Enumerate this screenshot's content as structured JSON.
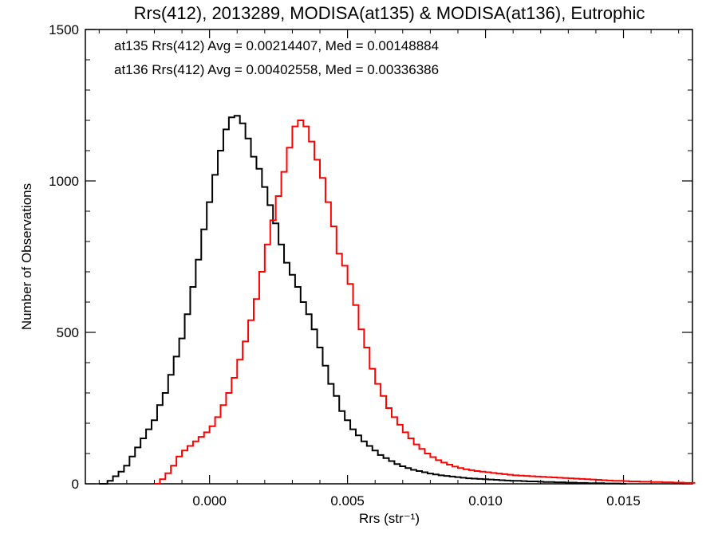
{
  "chart_data": {
    "type": "histogram",
    "title": "Rrs(412), 2013289, MODISA(at135) & MODISA(at136), Eutrophic",
    "xlabel": "Rrs (str⁻¹)",
    "ylabel": "Number of Observations",
    "xlim": [
      -0.0045,
      0.0175
    ],
    "ylim": [
      0,
      1500
    ],
    "x_ticks": [
      0.0,
      0.005,
      0.01,
      0.015
    ],
    "x_tick_labels": [
      "0.000",
      "0.005",
      "0.010",
      "0.015"
    ],
    "y_ticks": [
      0,
      500,
      1000,
      1500
    ],
    "y_tick_labels": [
      "0",
      "500",
      "1000",
      "1500"
    ],
    "annotations": [
      {
        "text": "at135 Rrs(412) Avg = 0.00214407, Med = 0.00148884",
        "color": "#000000"
      },
      {
        "text": "at136 Rrs(412) Avg = 0.00402558, Med = 0.00336386",
        "color": "#ff0000"
      }
    ],
    "series": [
      {
        "name": "at135",
        "color": "#000000",
        "points": [
          [
            -0.004,
            0
          ],
          [
            -0.0037,
            10
          ],
          [
            -0.0035,
            25
          ],
          [
            -0.0033,
            40
          ],
          [
            -0.0031,
            60
          ],
          [
            -0.0029,
            90
          ],
          [
            -0.0027,
            120
          ],
          [
            -0.0025,
            150
          ],
          [
            -0.0023,
            180
          ],
          [
            -0.0021,
            210
          ],
          [
            -0.0019,
            260
          ],
          [
            -0.0017,
            300
          ],
          [
            -0.0015,
            360
          ],
          [
            -0.0013,
            420
          ],
          [
            -0.0011,
            480
          ],
          [
            -0.0009,
            560
          ],
          [
            -0.0007,
            650
          ],
          [
            -0.0005,
            740
          ],
          [
            -0.0003,
            840
          ],
          [
            -0.0001,
            930
          ],
          [
            0.0001,
            1020
          ],
          [
            0.0003,
            1100
          ],
          [
            0.0005,
            1170
          ],
          [
            0.0007,
            1210
          ],
          [
            0.0009,
            1215
          ],
          [
            0.0011,
            1190
          ],
          [
            0.0013,
            1140
          ],
          [
            0.0015,
            1080
          ],
          [
            0.0017,
            1040
          ],
          [
            0.0019,
            980
          ],
          [
            0.0021,
            920
          ],
          [
            0.0023,
            860
          ],
          [
            0.0025,
            790
          ],
          [
            0.0027,
            730
          ],
          [
            0.0029,
            690
          ],
          [
            0.0031,
            650
          ],
          [
            0.0033,
            600
          ],
          [
            0.0035,
            560
          ],
          [
            0.0037,
            510
          ],
          [
            0.0039,
            450
          ],
          [
            0.0041,
            390
          ],
          [
            0.0043,
            330
          ],
          [
            0.0045,
            290
          ],
          [
            0.0047,
            240
          ],
          [
            0.0049,
            210
          ],
          [
            0.0051,
            180
          ],
          [
            0.0053,
            160
          ],
          [
            0.0055,
            140
          ],
          [
            0.0057,
            125
          ],
          [
            0.0059,
            110
          ],
          [
            0.0061,
            95
          ],
          [
            0.0063,
            85
          ],
          [
            0.0065,
            75
          ],
          [
            0.0067,
            65
          ],
          [
            0.0069,
            58
          ],
          [
            0.0071,
            52
          ],
          [
            0.0073,
            46
          ],
          [
            0.0075,
            42
          ],
          [
            0.0077,
            38
          ],
          [
            0.0079,
            34
          ],
          [
            0.0081,
            31
          ],
          [
            0.0083,
            28
          ],
          [
            0.0085,
            26
          ],
          [
            0.0087,
            24
          ],
          [
            0.0089,
            22
          ],
          [
            0.0091,
            20
          ],
          [
            0.0093,
            18
          ],
          [
            0.0095,
            17
          ],
          [
            0.0097,
            16
          ],
          [
            0.0099,
            15
          ],
          [
            0.0101,
            14
          ],
          [
            0.0103,
            13
          ],
          [
            0.0105,
            12
          ],
          [
            0.0107,
            11
          ],
          [
            0.0109,
            10
          ],
          [
            0.0111,
            10
          ],
          [
            0.0113,
            9
          ],
          [
            0.0115,
            8
          ],
          [
            0.0117,
            8
          ],
          [
            0.0119,
            7
          ],
          [
            0.0121,
            6
          ],
          [
            0.0123,
            6
          ],
          [
            0.0125,
            5
          ],
          [
            0.0127,
            5
          ],
          [
            0.0129,
            4
          ],
          [
            0.0131,
            4
          ],
          [
            0.0133,
            3
          ],
          [
            0.0135,
            3
          ],
          [
            0.0137,
            2
          ],
          [
            0.0139,
            2
          ],
          [
            0.0141,
            2
          ],
          [
            0.0143,
            1
          ],
          [
            0.0145,
            1
          ],
          [
            0.0147,
            1
          ],
          [
            0.0149,
            0
          ]
        ]
      },
      {
        "name": "at136",
        "color": "#ff0000",
        "points": [
          [
            -0.002,
            0
          ],
          [
            -0.0018,
            15
          ],
          [
            -0.0016,
            35
          ],
          [
            -0.0014,
            60
          ],
          [
            -0.0012,
            90
          ],
          [
            -0.001,
            110
          ],
          [
            -0.0008,
            125
          ],
          [
            -0.0006,
            140
          ],
          [
            -0.0004,
            155
          ],
          [
            -0.0002,
            170
          ],
          [
            0.0,
            190
          ],
          [
            0.0002,
            220
          ],
          [
            0.0004,
            260
          ],
          [
            0.0006,
            300
          ],
          [
            0.0008,
            350
          ],
          [
            0.001,
            410
          ],
          [
            0.0012,
            470
          ],
          [
            0.0014,
            540
          ],
          [
            0.0016,
            610
          ],
          [
            0.0018,
            700
          ],
          [
            0.002,
            790
          ],
          [
            0.0022,
            870
          ],
          [
            0.0024,
            950
          ],
          [
            0.0026,
            1030
          ],
          [
            0.0028,
            1110
          ],
          [
            0.003,
            1180
          ],
          [
            0.0032,
            1200
          ],
          [
            0.0034,
            1180
          ],
          [
            0.0036,
            1130
          ],
          [
            0.0038,
            1070
          ],
          [
            0.004,
            1010
          ],
          [
            0.0042,
            930
          ],
          [
            0.0044,
            850
          ],
          [
            0.0046,
            760
          ],
          [
            0.0048,
            720
          ],
          [
            0.005,
            660
          ],
          [
            0.0052,
            590
          ],
          [
            0.0054,
            510
          ],
          [
            0.0056,
            450
          ],
          [
            0.0058,
            380
          ],
          [
            0.006,
            330
          ],
          [
            0.0062,
            290
          ],
          [
            0.0064,
            250
          ],
          [
            0.0066,
            220
          ],
          [
            0.0068,
            195
          ],
          [
            0.007,
            170
          ],
          [
            0.0072,
            150
          ],
          [
            0.0074,
            130
          ],
          [
            0.0076,
            115
          ],
          [
            0.0078,
            100
          ],
          [
            0.008,
            88
          ],
          [
            0.0082,
            78
          ],
          [
            0.0084,
            70
          ],
          [
            0.0086,
            63
          ],
          [
            0.0088,
            57
          ],
          [
            0.009,
            52
          ],
          [
            0.0092,
            48
          ],
          [
            0.0094,
            45
          ],
          [
            0.0096,
            42
          ],
          [
            0.0098,
            40
          ],
          [
            0.01,
            38
          ],
          [
            0.0102,
            36
          ],
          [
            0.0104,
            34
          ],
          [
            0.0106,
            32
          ],
          [
            0.0108,
            30
          ],
          [
            0.011,
            28
          ],
          [
            0.0112,
            27
          ],
          [
            0.0114,
            26
          ],
          [
            0.0116,
            25
          ],
          [
            0.0118,
            24
          ],
          [
            0.012,
            23
          ],
          [
            0.0122,
            22
          ],
          [
            0.0124,
            21
          ],
          [
            0.0126,
            20
          ],
          [
            0.0128,
            19
          ],
          [
            0.013,
            18
          ],
          [
            0.0132,
            17
          ],
          [
            0.0134,
            16
          ],
          [
            0.0136,
            15
          ],
          [
            0.0138,
            14
          ],
          [
            0.014,
            13
          ],
          [
            0.0142,
            12
          ],
          [
            0.0144,
            11
          ],
          [
            0.0146,
            10
          ],
          [
            0.0148,
            10
          ],
          [
            0.015,
            9
          ],
          [
            0.0152,
            8
          ],
          [
            0.0154,
            8
          ],
          [
            0.0156,
            7
          ],
          [
            0.0158,
            7
          ],
          [
            0.016,
            6
          ],
          [
            0.0162,
            6
          ],
          [
            0.0164,
            5
          ],
          [
            0.0166,
            5
          ],
          [
            0.0168,
            4
          ],
          [
            0.017,
            4
          ],
          [
            0.0172,
            3
          ],
          [
            0.0174,
            3
          ]
        ]
      }
    ]
  }
}
